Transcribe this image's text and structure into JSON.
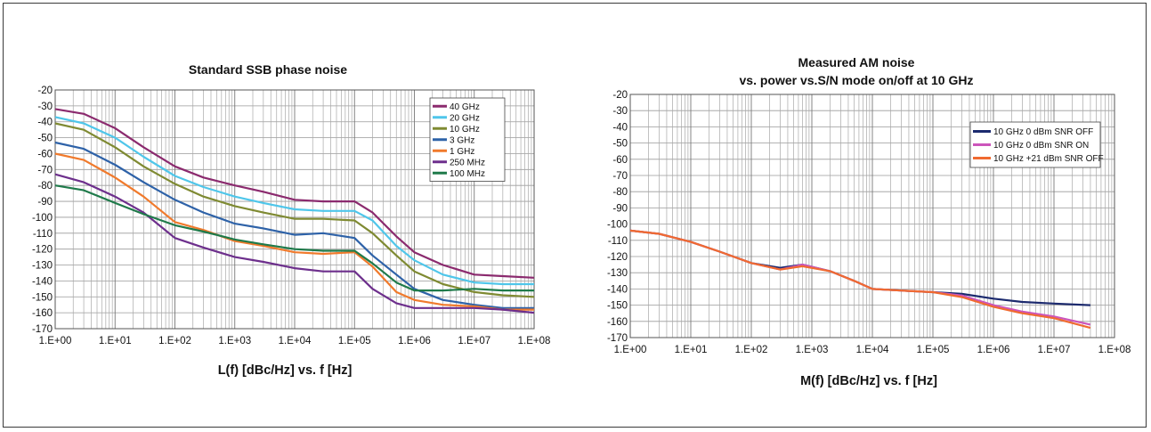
{
  "chart_data": [
    {
      "type": "line",
      "title": "Standard SSB phase noise",
      "xlabel": "L(f) [dBc/Hz] vs. f [Hz]",
      "ylabel": "",
      "x_scale": "log",
      "xlim": [
        1,
        100000000
      ],
      "ylim": [
        -170,
        -20
      ],
      "grid": true,
      "legend_position": "top-right",
      "x_tick_labels": [
        "1.E+00",
        "1.E+01",
        "1.E+02",
        "1.E+03",
        "1.E+04",
        "1.E+05",
        "1.E+06",
        "1.E+07",
        "1.E+08"
      ],
      "y_ticks": [
        -20,
        -30,
        -40,
        -50,
        -60,
        -70,
        -80,
        -90,
        -100,
        -110,
        -120,
        -130,
        -140,
        -150,
        -160,
        -170
      ],
      "x": [
        1,
        3,
        10,
        30,
        100,
        300,
        1000,
        3000,
        10000,
        30000,
        100000,
        200000,
        500000,
        1000000,
        3000000,
        10000000,
        30000000,
        100000000
      ],
      "series": [
        {
          "name": "40 GHz",
          "color": "#8b2a6e",
          "values": [
            -32,
            -35,
            -44,
            -56,
            -68,
            -75,
            -80,
            -84,
            -89,
            -90,
            -90,
            -97,
            -112,
            -122,
            -130,
            -136,
            -137,
            -138
          ]
        },
        {
          "name": "20 GHz",
          "color": "#4fc6ea",
          "values": [
            -37,
            -41,
            -50,
            -62,
            -74,
            -81,
            -87,
            -91,
            -95,
            -96,
            -96,
            -102,
            -118,
            -127,
            -136,
            -141,
            -142,
            -142
          ]
        },
        {
          "name": "10 GHz",
          "color": "#7f8a32",
          "values": [
            -41,
            -45,
            -56,
            -68,
            -79,
            -87,
            -93,
            -97,
            -101,
            -101,
            -102,
            -110,
            -124,
            -134,
            -142,
            -147,
            -149,
            -150
          ]
        },
        {
          "name": "3 GHz",
          "color": "#2e62a8",
          "values": [
            -53,
            -57,
            -67,
            -78,
            -89,
            -97,
            -104,
            -107,
            -111,
            -110,
            -113,
            -124,
            -136,
            -145,
            -152,
            -155,
            -157,
            -157
          ]
        },
        {
          "name": "1 GHz",
          "color": "#f07a2c",
          "values": [
            -60,
            -64,
            -75,
            -87,
            -103,
            -108,
            -115,
            -118,
            -122,
            -123,
            -122,
            -131,
            -147,
            -152,
            -155,
            -156,
            -158,
            -158
          ]
        },
        {
          "name": "250 MHz",
          "color": "#6d2f8c",
          "values": [
            -73,
            -78,
            -87,
            -97,
            -113,
            -119,
            -125,
            -128,
            -132,
            -134,
            -134,
            -145,
            -154,
            -157,
            -157,
            -157,
            -158,
            -160
          ]
        },
        {
          "name": "100 MHz",
          "color": "#1f7a4a",
          "values": [
            -80,
            -83,
            -91,
            -98,
            -105,
            -109,
            -114,
            -117,
            -120,
            -121,
            -121,
            -129,
            -141,
            -146,
            -146,
            -145,
            -146,
            -146
          ]
        }
      ]
    },
    {
      "type": "line",
      "title": "Measured AM noise",
      "subtitle": "vs. power vs.S/N mode on/off at 10 GHz",
      "xlabel": "M(f) [dBc/Hz] vs. f [Hz]",
      "ylabel": "",
      "x_scale": "log",
      "xlim": [
        1,
        100000000
      ],
      "ylim": [
        -170,
        -20
      ],
      "grid": true,
      "legend_position": "top-right",
      "x_tick_labels": [
        "1.E+00",
        "1.E+01",
        "1.E+02",
        "1.E+03",
        "1.E+04",
        "1.E+05",
        "1.E+06",
        "1.E+07",
        "1.E+08"
      ],
      "y_ticks": [
        -20,
        -30,
        -40,
        -50,
        -60,
        -70,
        -80,
        -90,
        -100,
        -110,
        -120,
        -130,
        -140,
        -150,
        -160,
        -170
      ],
      "x": [
        1,
        3,
        10,
        30,
        100,
        300,
        700,
        2000,
        5000,
        10000,
        30000,
        100000,
        300000,
        1000000,
        3000000,
        10000000,
        40000000
      ],
      "series": [
        {
          "name": "10 GHz 0 dBm SNR OFF",
          "color": "#1c2a6e",
          "values": [
            -104,
            -106,
            -111,
            -117,
            -124,
            -127,
            -125,
            -129,
            -135,
            -140,
            -141,
            -142,
            -143,
            -146,
            -148,
            -149,
            -150
          ]
        },
        {
          "name": "10 GHz 0 dBm SNR ON",
          "color": "#cc55bb",
          "values": [
            -104,
            -106,
            -111,
            -117,
            -124,
            -128,
            -125,
            -129,
            -135,
            -140,
            -141,
            -142,
            -144,
            -150,
            -154,
            -157,
            -162
          ]
        },
        {
          "name": "10 GHz +21 dBm SNR OFF",
          "color": "#f06a30",
          "values": [
            -104,
            -106,
            -111,
            -117,
            -124,
            -128,
            -126,
            -129,
            -135,
            -140,
            -141,
            -142,
            -145,
            -151,
            -155,
            -158,
            -164
          ]
        }
      ]
    }
  ]
}
